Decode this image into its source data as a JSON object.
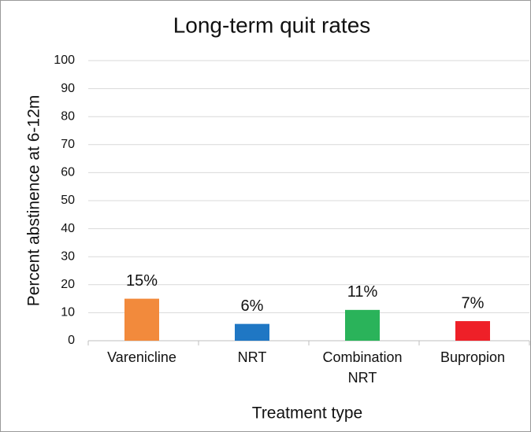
{
  "chart_data": {
    "type": "bar",
    "title": "Long-term quit rates",
    "categories": [
      "Varenicline",
      "NRT",
      "Combination NRT",
      "Bupropion"
    ],
    "values": [
      15,
      6,
      11,
      7
    ],
    "value_labels": [
      "15%",
      "6%",
      "11%",
      "7%"
    ],
    "colors": [
      "#f28a3c",
      "#1f77c4",
      "#2ab35a",
      "#ee2028"
    ],
    "ylim": [
      0,
      100
    ],
    "yticks": [
      0,
      10,
      20,
      30,
      40,
      50,
      60,
      70,
      80,
      90,
      100
    ],
    "grid": true,
    "xlabel": "Treatment type",
    "ylabel": "Percent abstinence at 6-12m"
  }
}
